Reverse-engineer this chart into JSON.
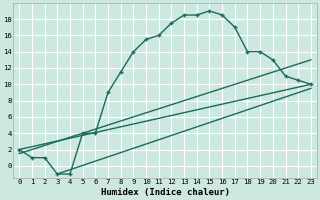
{
  "xlabel": "Humidex (Indice chaleur)",
  "bg_color": "#cce8e0",
  "grid_color": "#ffffff",
  "line_color": "#1a6b5a",
  "line_width": 1.0,
  "marker_size": 3.5,
  "xlim": [
    -0.5,
    23.5
  ],
  "ylim": [
    -1.5,
    20
  ],
  "xticks": [
    0,
    1,
    2,
    3,
    4,
    5,
    6,
    7,
    8,
    9,
    10,
    11,
    12,
    13,
    14,
    15,
    16,
    17,
    18,
    19,
    20,
    21,
    22,
    23
  ],
  "yticks": [
    0,
    2,
    4,
    6,
    8,
    10,
    12,
    14,
    16,
    18
  ],
  "curve_x": [
    0,
    1,
    2,
    3,
    4,
    5,
    6,
    7,
    8,
    9,
    10,
    11,
    12,
    13,
    14,
    15,
    16,
    17,
    18,
    19,
    20,
    21,
    22,
    23
  ],
  "curve_y": [
    2,
    1,
    1,
    -1,
    -1,
    4,
    4,
    9,
    11.5,
    14,
    15.5,
    16,
    17.5,
    18.5,
    18.5,
    19,
    18.5,
    17,
    14,
    14,
    13,
    11,
    10.5,
    10
  ],
  "line1_x": [
    0,
    23
  ],
  "line1_y": [
    2,
    10
  ],
  "line2_x": [
    0,
    23
  ],
  "line2_y": [
    1.5,
    13
  ],
  "line3_x": [
    3,
    23
  ],
  "line3_y": [
    -1,
    9.5
  ]
}
